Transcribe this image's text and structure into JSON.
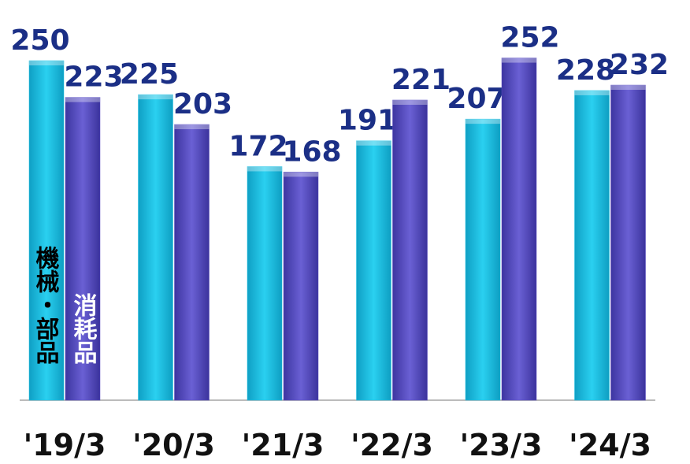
{
  "chart_data": {
    "type": "bar",
    "categories": [
      "'19/3",
      "'20/3",
      "'21/3",
      "'22/3",
      "'23/3",
      "'24/3"
    ],
    "series": [
      {
        "name": "機械・部品",
        "color": "#1ec3e6",
        "values": [
          250,
          225,
          172,
          191,
          207,
          228
        ]
      },
      {
        "name": "消耗品",
        "color": "#5a4fc4",
        "values": [
          223,
          203,
          168,
          221,
          252,
          232
        ]
      }
    ]
  }
}
